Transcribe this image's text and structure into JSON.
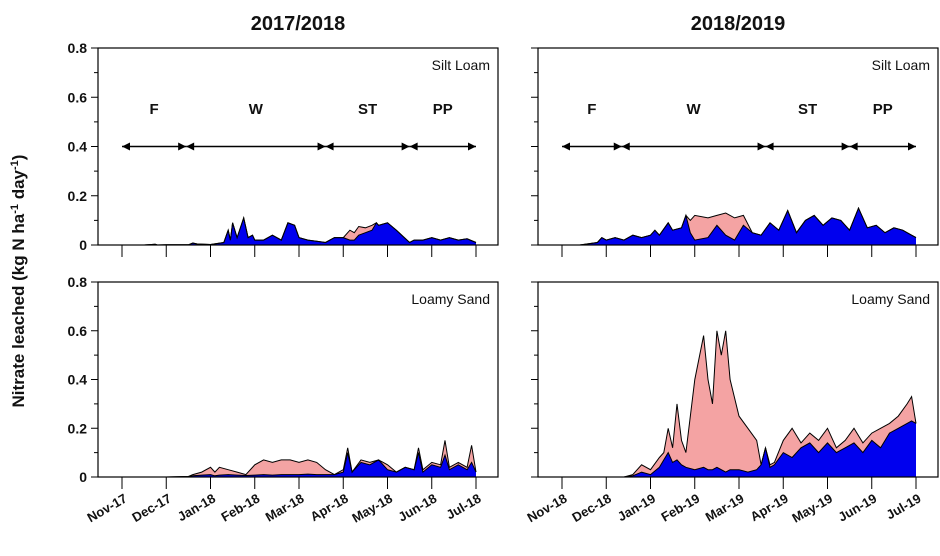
{
  "figure": {
    "ylabel_main": "Nitrate leached (kg N ha",
    "ylabel_sup1": "-1",
    "ylabel_mid": " day",
    "ylabel_sup2": "-1",
    "ylabel_end": ")"
  },
  "colors": {
    "series_a": "#f4a3a3",
    "series_b": "#0000ee",
    "line": "#000000"
  },
  "chart_data": [
    {
      "type": "area",
      "season": "2017/2018",
      "soil_label": "Silt Loam",
      "ylim": [
        0,
        0.8
      ],
      "yticks": [
        "0",
        "0.2",
        "0.4",
        "0.6",
        "0.8"
      ],
      "ytick_values": [
        0,
        0.2,
        0.4,
        0.6,
        0.8
      ],
      "show_xticklabels": false,
      "xticklabels": [
        "Nov-17",
        "Dec-17",
        "Jan-18",
        "Feb-18",
        "Mar-18",
        "Apr-18",
        "May-18",
        "Jun-18",
        "Jul-18"
      ],
      "phases": [
        {
          "label": "F",
          "from": 0,
          "to": 1.45
        },
        {
          "label": "W",
          "from": 1.45,
          "to": 4.6
        },
        {
          "label": "ST",
          "from": 4.6,
          "to": 6.5
        },
        {
          "label": "PP",
          "from": 6.5,
          "to": 8
        }
      ],
      "phase_y": 0.4,
      "x": [
        0,
        0.5,
        0.75,
        0.8,
        1,
        1.5,
        1.6,
        1.7,
        2,
        2.3,
        2.4,
        2.45,
        2.5,
        2.6,
        2.75,
        2.85,
        2.95,
        3,
        3.2,
        3.4,
        3.6,
        3.75,
        3.9,
        4,
        4.2,
        4.4,
        4.6,
        4.8,
        5,
        5.15,
        5.25,
        5.35,
        5.5,
        5.65,
        5.75,
        5.8,
        6,
        6.2,
        6.5,
        6.6,
        6.8,
        7,
        7.2,
        7.4,
        7.6,
        7.8,
        8
      ],
      "series_a": [
        0,
        0,
        0.003,
        0,
        0.001,
        0.001,
        0.008,
        0.004,
        0.002,
        0.01,
        0.06,
        0.02,
        0.09,
        0.03,
        0.11,
        0.03,
        0.04,
        0.02,
        0.02,
        0.04,
        0.02,
        0.09,
        0.08,
        0.03,
        0.02,
        0.015,
        0.01,
        0.03,
        0.03,
        0.06,
        0.05,
        0.075,
        0.07,
        0.08,
        0.09,
        0.08,
        0.09,
        0.06,
        0.01,
        0.02,
        0.02,
        0.03,
        0.02,
        0.03,
        0.02,
        0.025,
        0.01
      ],
      "series_b": [
        0,
        0,
        0.003,
        0,
        0.001,
        0.001,
        0.008,
        0.004,
        0.002,
        0.01,
        0.06,
        0.02,
        0.09,
        0.03,
        0.11,
        0.03,
        0.04,
        0.02,
        0.02,
        0.04,
        0.02,
        0.09,
        0.08,
        0.03,
        0.02,
        0.015,
        0.01,
        0.03,
        0.03,
        0.02,
        0.02,
        0.04,
        0.05,
        0.06,
        0.09,
        0.08,
        0.09,
        0.06,
        0.01,
        0.02,
        0.02,
        0.03,
        0.02,
        0.03,
        0.02,
        0.025,
        0.01
      ]
    },
    {
      "type": "area",
      "season": "2018/2019",
      "soil_label": "Silt Loam",
      "ylim": [
        0,
        0.8
      ],
      "yticks": [
        "0",
        "0.2",
        "0.4",
        "0.6",
        "0.8"
      ],
      "ytick_values": [
        0,
        0.2,
        0.4,
        0.6,
        0.8
      ],
      "show_xticklabels": false,
      "xticklabels": [
        "Nov-18",
        "Dec-18",
        "Jan-19",
        "Feb-19",
        "Mar-19",
        "Apr-19",
        "May-19",
        "Jun-19",
        "Jul-19"
      ],
      "phases": [
        {
          "label": "F",
          "from": 0,
          "to": 1.35
        },
        {
          "label": "W",
          "from": 1.35,
          "to": 4.6
        },
        {
          "label": "ST",
          "from": 4.6,
          "to": 6.5
        },
        {
          "label": "PP",
          "from": 6.5,
          "to": 8
        }
      ],
      "phase_y": 0.4,
      "x": [
        0,
        0.4,
        0.8,
        0.9,
        1,
        1.2,
        1.4,
        1.6,
        1.8,
        2,
        2.1,
        2.2,
        2.4,
        2.5,
        2.7,
        2.8,
        2.9,
        3.0,
        3.3,
        3.5,
        3.7,
        3.9,
        4.1,
        4.3,
        4.5,
        4.7,
        4.9,
        5.1,
        5.3,
        5.5,
        5.7,
        5.9,
        6.1,
        6.3,
        6.5,
        6.7,
        6.9,
        7.1,
        7.3,
        7.5,
        7.7,
        7.9,
        8
      ],
      "series_a": [
        0,
        0,
        0.01,
        0.03,
        0.02,
        0.03,
        0.02,
        0.04,
        0.03,
        0.04,
        0.06,
        0.04,
        0.09,
        0.06,
        0.07,
        0.12,
        0.1,
        0.12,
        0.11,
        0.12,
        0.13,
        0.11,
        0.12,
        0.05,
        0.04,
        0.09,
        0.06,
        0.14,
        0.05,
        0.1,
        0.12,
        0.08,
        0.11,
        0.1,
        0.06,
        0.15,
        0.07,
        0.08,
        0.05,
        0.07,
        0.06,
        0.04,
        0.03
      ],
      "series_b": [
        0,
        0,
        0.01,
        0.03,
        0.02,
        0.03,
        0.02,
        0.04,
        0.03,
        0.04,
        0.06,
        0.04,
        0.09,
        0.06,
        0.07,
        0.12,
        0.05,
        0.02,
        0.03,
        0.08,
        0.04,
        0.02,
        0.08,
        0.05,
        0.04,
        0.09,
        0.06,
        0.14,
        0.05,
        0.1,
        0.12,
        0.08,
        0.11,
        0.1,
        0.06,
        0.15,
        0.07,
        0.08,
        0.05,
        0.07,
        0.06,
        0.04,
        0.03
      ]
    },
    {
      "type": "area",
      "season": "",
      "soil_label": "Loamy Sand",
      "ylim": [
        0,
        0.8
      ],
      "yticks": [
        "0",
        "0.2",
        "0.4",
        "0.6",
        "0.8"
      ],
      "ytick_values": [
        0,
        0.2,
        0.4,
        0.6,
        0.8
      ],
      "show_xticklabels": true,
      "xticklabels": [
        "Nov-17",
        "Dec-17",
        "Jan-18",
        "Feb-18",
        "Mar-18",
        "Apr-18",
        "May-18",
        "Jun-18",
        "Jul-18"
      ],
      "phases": [],
      "x": [
        0,
        0.5,
        1,
        1.5,
        1.6,
        1.8,
        2.0,
        2.1,
        2.2,
        2.4,
        2.6,
        2.8,
        3.0,
        3.2,
        3.4,
        3.6,
        3.8,
        4.0,
        4.2,
        4.4,
        4.6,
        4.8,
        5.0,
        5.1,
        5.2,
        5.4,
        5.6,
        5.8,
        6.0,
        6.2,
        6.4,
        6.6,
        6.7,
        6.8,
        7.0,
        7.2,
        7.3,
        7.4,
        7.6,
        7.8,
        7.9,
        8
      ],
      "series_a": [
        0,
        0,
        0,
        0.002,
        0.01,
        0.02,
        0.04,
        0.02,
        0.04,
        0.03,
        0.02,
        0.01,
        0.05,
        0.07,
        0.06,
        0.07,
        0.07,
        0.06,
        0.07,
        0.06,
        0.03,
        0.01,
        0.03,
        0.12,
        0.02,
        0.07,
        0.06,
        0.07,
        0.05,
        0.02,
        0.04,
        0.03,
        0.12,
        0.03,
        0.06,
        0.05,
        0.15,
        0.04,
        0.06,
        0.04,
        0.13,
        0.02
      ],
      "series_b": [
        0,
        0,
        0,
        0.002,
        0.005,
        0.008,
        0.01,
        0.005,
        0.008,
        0.01,
        0.008,
        0.006,
        0.008,
        0.01,
        0.008,
        0.01,
        0.01,
        0.01,
        0.012,
        0.01,
        0.01,
        0.01,
        0.02,
        0.1,
        0.02,
        0.06,
        0.05,
        0.07,
        0.03,
        0.02,
        0.04,
        0.03,
        0.1,
        0.02,
        0.05,
        0.04,
        0.09,
        0.03,
        0.05,
        0.03,
        0.06,
        0.02
      ]
    },
    {
      "type": "area",
      "season": "",
      "soil_label": "Loamy Sand",
      "ylim": [
        0,
        0.8
      ],
      "yticks": [
        "0",
        "0.2",
        "0.4",
        "0.6",
        "0.8"
      ],
      "ytick_values": [
        0,
        0.2,
        0.4,
        0.6,
        0.8
      ],
      "show_xticklabels": true,
      "xticklabels": [
        "Nov-18",
        "Dec-18",
        "Jan-19",
        "Feb-19",
        "Mar-19",
        "Apr-19",
        "May-19",
        "Jun-19",
        "Jul-19"
      ],
      "phases": [],
      "x": [
        0,
        1,
        1.4,
        1.6,
        1.8,
        2.0,
        2.2,
        2.3,
        2.4,
        2.5,
        2.6,
        2.7,
        2.8,
        3.0,
        3.2,
        3.3,
        3.4,
        3.5,
        3.6,
        3.7,
        3.8,
        4.0,
        4.2,
        4.4,
        4.5,
        4.6,
        4.7,
        4.8,
        5.0,
        5.2,
        5.4,
        5.6,
        5.8,
        6.0,
        6.2,
        6.4,
        6.6,
        6.8,
        7.0,
        7.2,
        7.4,
        7.6,
        7.8,
        7.9,
        8
      ],
      "series_a": [
        0,
        0,
        0,
        0.01,
        0.05,
        0.03,
        0.08,
        0.1,
        0.2,
        0.12,
        0.3,
        0.15,
        0.1,
        0.4,
        0.58,
        0.4,
        0.3,
        0.6,
        0.5,
        0.6,
        0.4,
        0.25,
        0.2,
        0.15,
        0.05,
        0.12,
        0.05,
        0.06,
        0.15,
        0.2,
        0.14,
        0.18,
        0.15,
        0.2,
        0.12,
        0.15,
        0.2,
        0.14,
        0.18,
        0.2,
        0.22,
        0.25,
        0.3,
        0.33,
        0.22
      ],
      "series_b": [
        0,
        0,
        0,
        0.005,
        0.02,
        0.01,
        0.04,
        0.07,
        0.1,
        0.06,
        0.07,
        0.05,
        0.04,
        0.03,
        0.04,
        0.03,
        0.03,
        0.04,
        0.03,
        0.02,
        0.03,
        0.03,
        0.02,
        0.03,
        0.05,
        0.12,
        0.04,
        0.05,
        0.1,
        0.08,
        0.12,
        0.14,
        0.1,
        0.14,
        0.1,
        0.12,
        0.14,
        0.1,
        0.15,
        0.12,
        0.18,
        0.2,
        0.22,
        0.23,
        0.22
      ]
    }
  ]
}
